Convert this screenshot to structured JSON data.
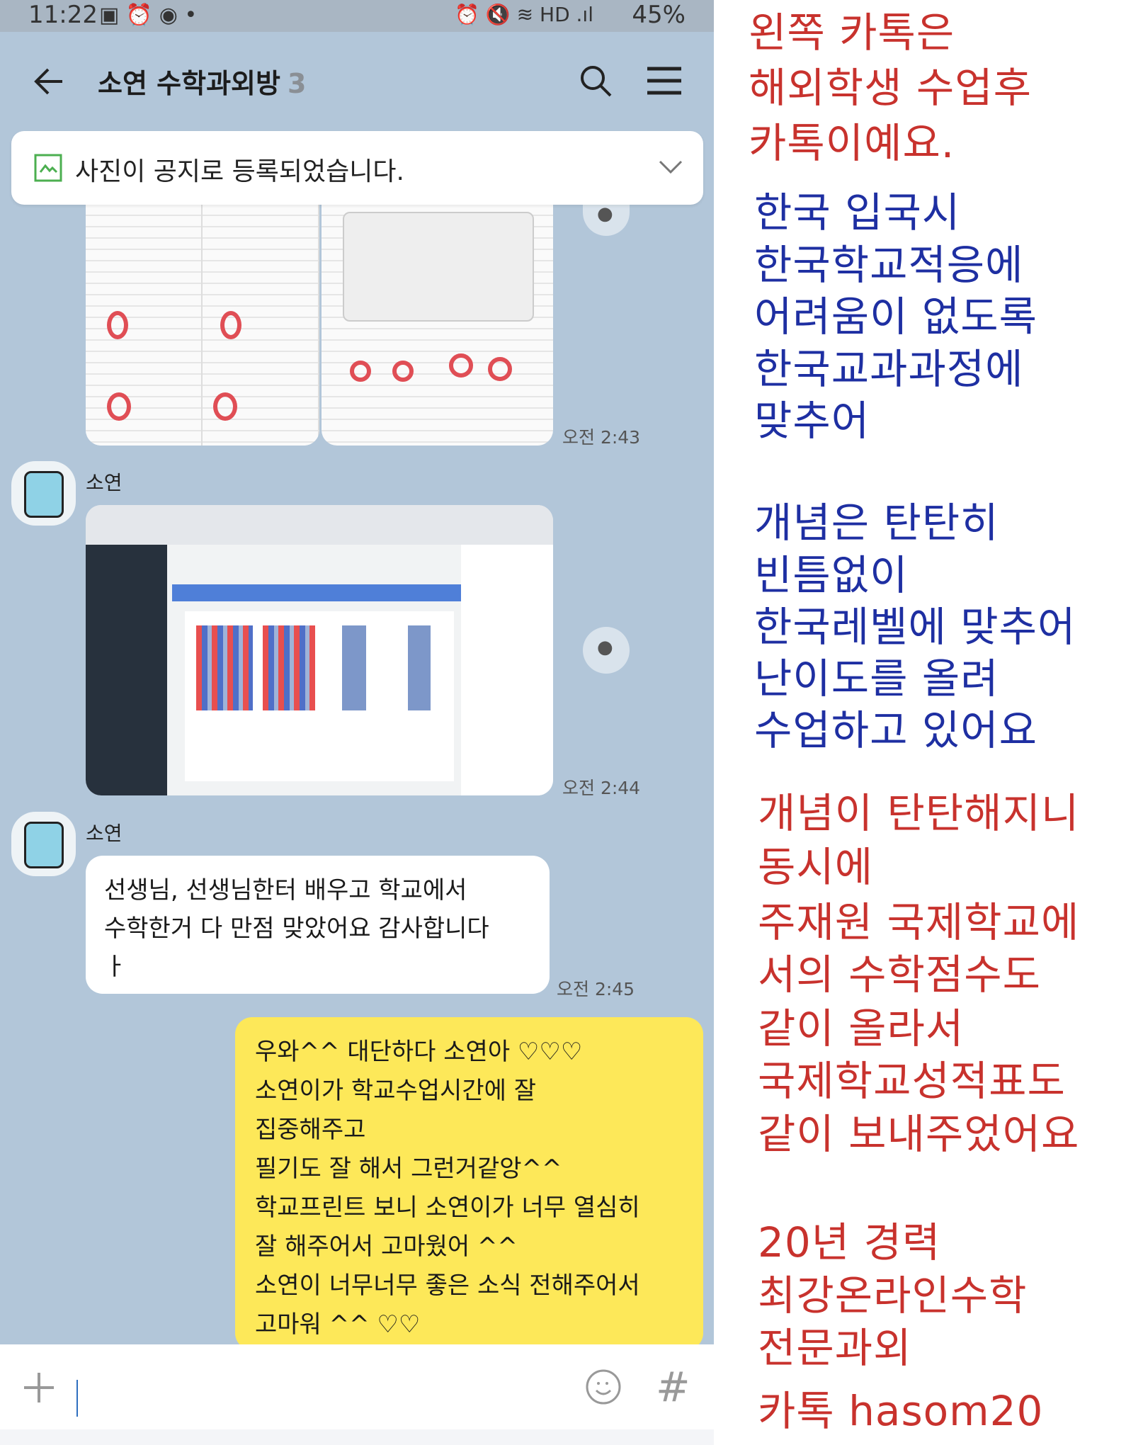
{
  "status_bar": {
    "time": "11:22",
    "battery": "45%",
    "icons": [
      "gallery-icon",
      "alarm-icon",
      "messenger-icon",
      "alarm-icon",
      "mute-icon",
      "wifi-icon",
      "hd-voice-icon",
      "signal-icon",
      "battery-icon"
    ]
  },
  "header": {
    "title": "소연 수학과외방",
    "member_count": "3",
    "icons": [
      "back-arrow-icon",
      "search-icon",
      "menu-icon"
    ]
  },
  "notice": {
    "text": "사진이 공지로 등록되었습니다."
  },
  "messages": [
    {
      "type": "image",
      "sender": "",
      "time": "오전 2:43",
      "content": "worksheet photos"
    },
    {
      "type": "image",
      "sender": "소연",
      "time": "오전 2:44",
      "content": "school portal screenshot"
    },
    {
      "type": "text",
      "sender": "소연",
      "time": "오전 2:45",
      "text": "선생님, 선생님한터 배우고 학교에서\n수학한거 다 만점 맞았어요 감사합니다\nㅏ"
    },
    {
      "type": "text",
      "sender": "me",
      "time": "",
      "text": "우와^^ 대단하다 소연아 ♡♡♡\n소연이가 학교수업시간에 잘\n집중해주고\n필기도 잘 해서 그런거같앙^^\n학교프린트 보니 소연이가 너무 열심히\n잘 해주어서 고마웠어 ^^\n소연이 너무너무 좋은 소식 전해주어서\n고마워 ^^ ♡♡"
    }
  ],
  "input": {
    "value": "",
    "icons": [
      "plus-icon",
      "emoji-icon",
      "hash-icon"
    ]
  },
  "colors": {
    "chat_bg": "#b2c6d9",
    "my_bubble": "#fde859",
    "red_text": "#c8322d",
    "blue_text": "#1e2fa2"
  },
  "annotation": {
    "block1": [
      "왼쪽 카톡은",
      "해외학생 수업후",
      "카톡이예요."
    ],
    "block2": [
      "한국 입국시",
      "한국학교적응에",
      "어려움이 없도록",
      "한국교과과정에",
      "맞추어"
    ],
    "block3": [
      "개념은 탄탄히",
      "빈틈없이",
      "한국레벨에 맞추어",
      "난이도를 올려",
      "수업하고 있어요"
    ],
    "block4": [
      "개념이 탄탄해지니",
      "동시에",
      "주재원 국제학교에",
      "서의 수학점수도",
      "같이 올라서",
      "국제학교성적표도",
      "같이 보내주었어요"
    ],
    "block5": [
      "20년 경력",
      "최강온라인수학",
      "전문과외"
    ],
    "contact": "카톡 hasom20"
  }
}
